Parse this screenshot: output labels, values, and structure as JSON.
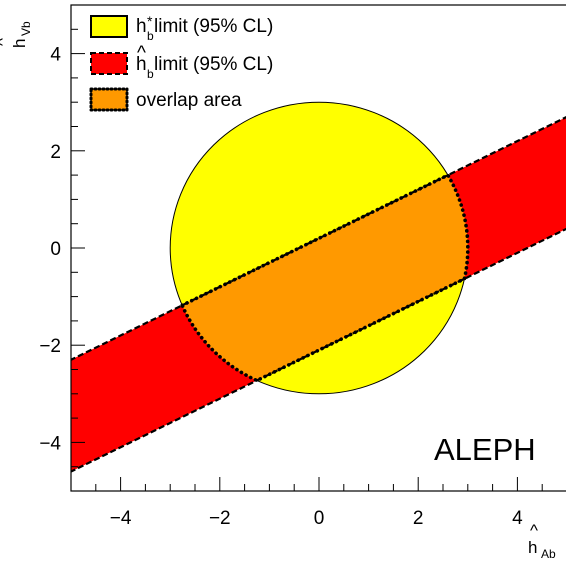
{
  "chart_data": {
    "type": "area",
    "xlim": [
      -5,
      5
    ],
    "ylim": [
      -5,
      5
    ],
    "x_ticks": [
      -4,
      -2,
      0,
      2,
      4
    ],
    "y_ticks": [
      -4,
      -2,
      0,
      2,
      4
    ],
    "x_tick_labels": [
      "−4",
      "−2",
      "0",
      "2",
      "4"
    ],
    "y_tick_labels": [
      "−4",
      "−2",
      "0",
      "2",
      "4"
    ],
    "xlabel": {
      "main": "h",
      "accent": "^",
      "sub": "Ab"
    },
    "ylabel": {
      "main": "h",
      "accent": "^",
      "sub": "Vb"
    },
    "grid": false,
    "legend_position": "top-left",
    "series": [
      {
        "name": "h* b limit (95% CL)",
        "shape": "circle",
        "center": [
          0,
          0
        ],
        "radius": 3.0,
        "fill": "#ffff00",
        "line": "solid"
      },
      {
        "name": "ĥ b limit (95% CL)",
        "shape": "band",
        "slope": 0.5,
        "upper_intercept": 0.2,
        "lower_intercept": -2.1,
        "fill": "#ff0000",
        "line": "dashed"
      },
      {
        "name": "overlap area",
        "shape": "intersection",
        "fill": "#ff9900",
        "line": "dotted"
      }
    ],
    "legend": [
      {
        "main": "h",
        "sup": "*",
        "sub": "b",
        "rest": " limit (95% CL)"
      },
      {
        "main": "h",
        "accent": "^",
        "sub": "b",
        "rest": " limit (95% CL)"
      },
      {
        "text": "overlap area"
      }
    ],
    "annotation": "ALEPH",
    "colors": {
      "circle": "#ffff00",
      "band": "#ff0000",
      "overlap": "#ff9900",
      "frame": "#000000"
    }
  }
}
